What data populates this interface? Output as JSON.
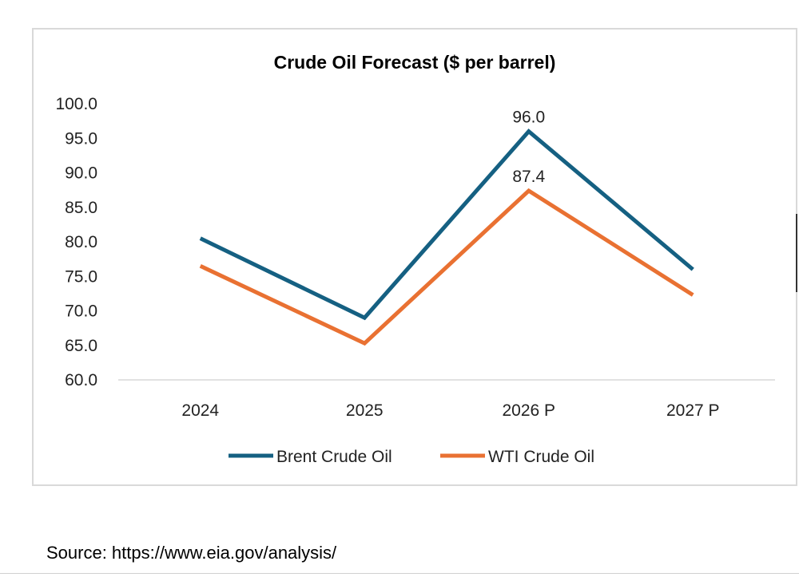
{
  "chart_data": {
    "type": "line",
    "title": "Crude Oil Forecast ($ per barrel)",
    "categories": [
      "2024",
      "2025",
      "2026 P",
      "2027 P"
    ],
    "ylim": [
      60,
      100
    ],
    "yticks": [
      "60.0",
      "65.0",
      "70.0",
      "75.0",
      "80.0",
      "85.0",
      "90.0",
      "95.0",
      "100.0"
    ],
    "grid": false,
    "legend": "bottom",
    "series": [
      {
        "name": "Brent Crude Oil",
        "color": "#156082",
        "values": [
          80.5,
          69.0,
          96.0,
          76.0
        ]
      },
      {
        "name": "WTI Crude Oil",
        "color": "#E97132",
        "values": [
          76.5,
          65.3,
          87.4,
          72.3
        ]
      }
    ],
    "data_labels": [
      {
        "series": 0,
        "index": 2,
        "text": "96.0"
      },
      {
        "series": 1,
        "index": 2,
        "text": "87.4"
      }
    ]
  },
  "source": "Source: https://www.eia.gov/analysis/"
}
